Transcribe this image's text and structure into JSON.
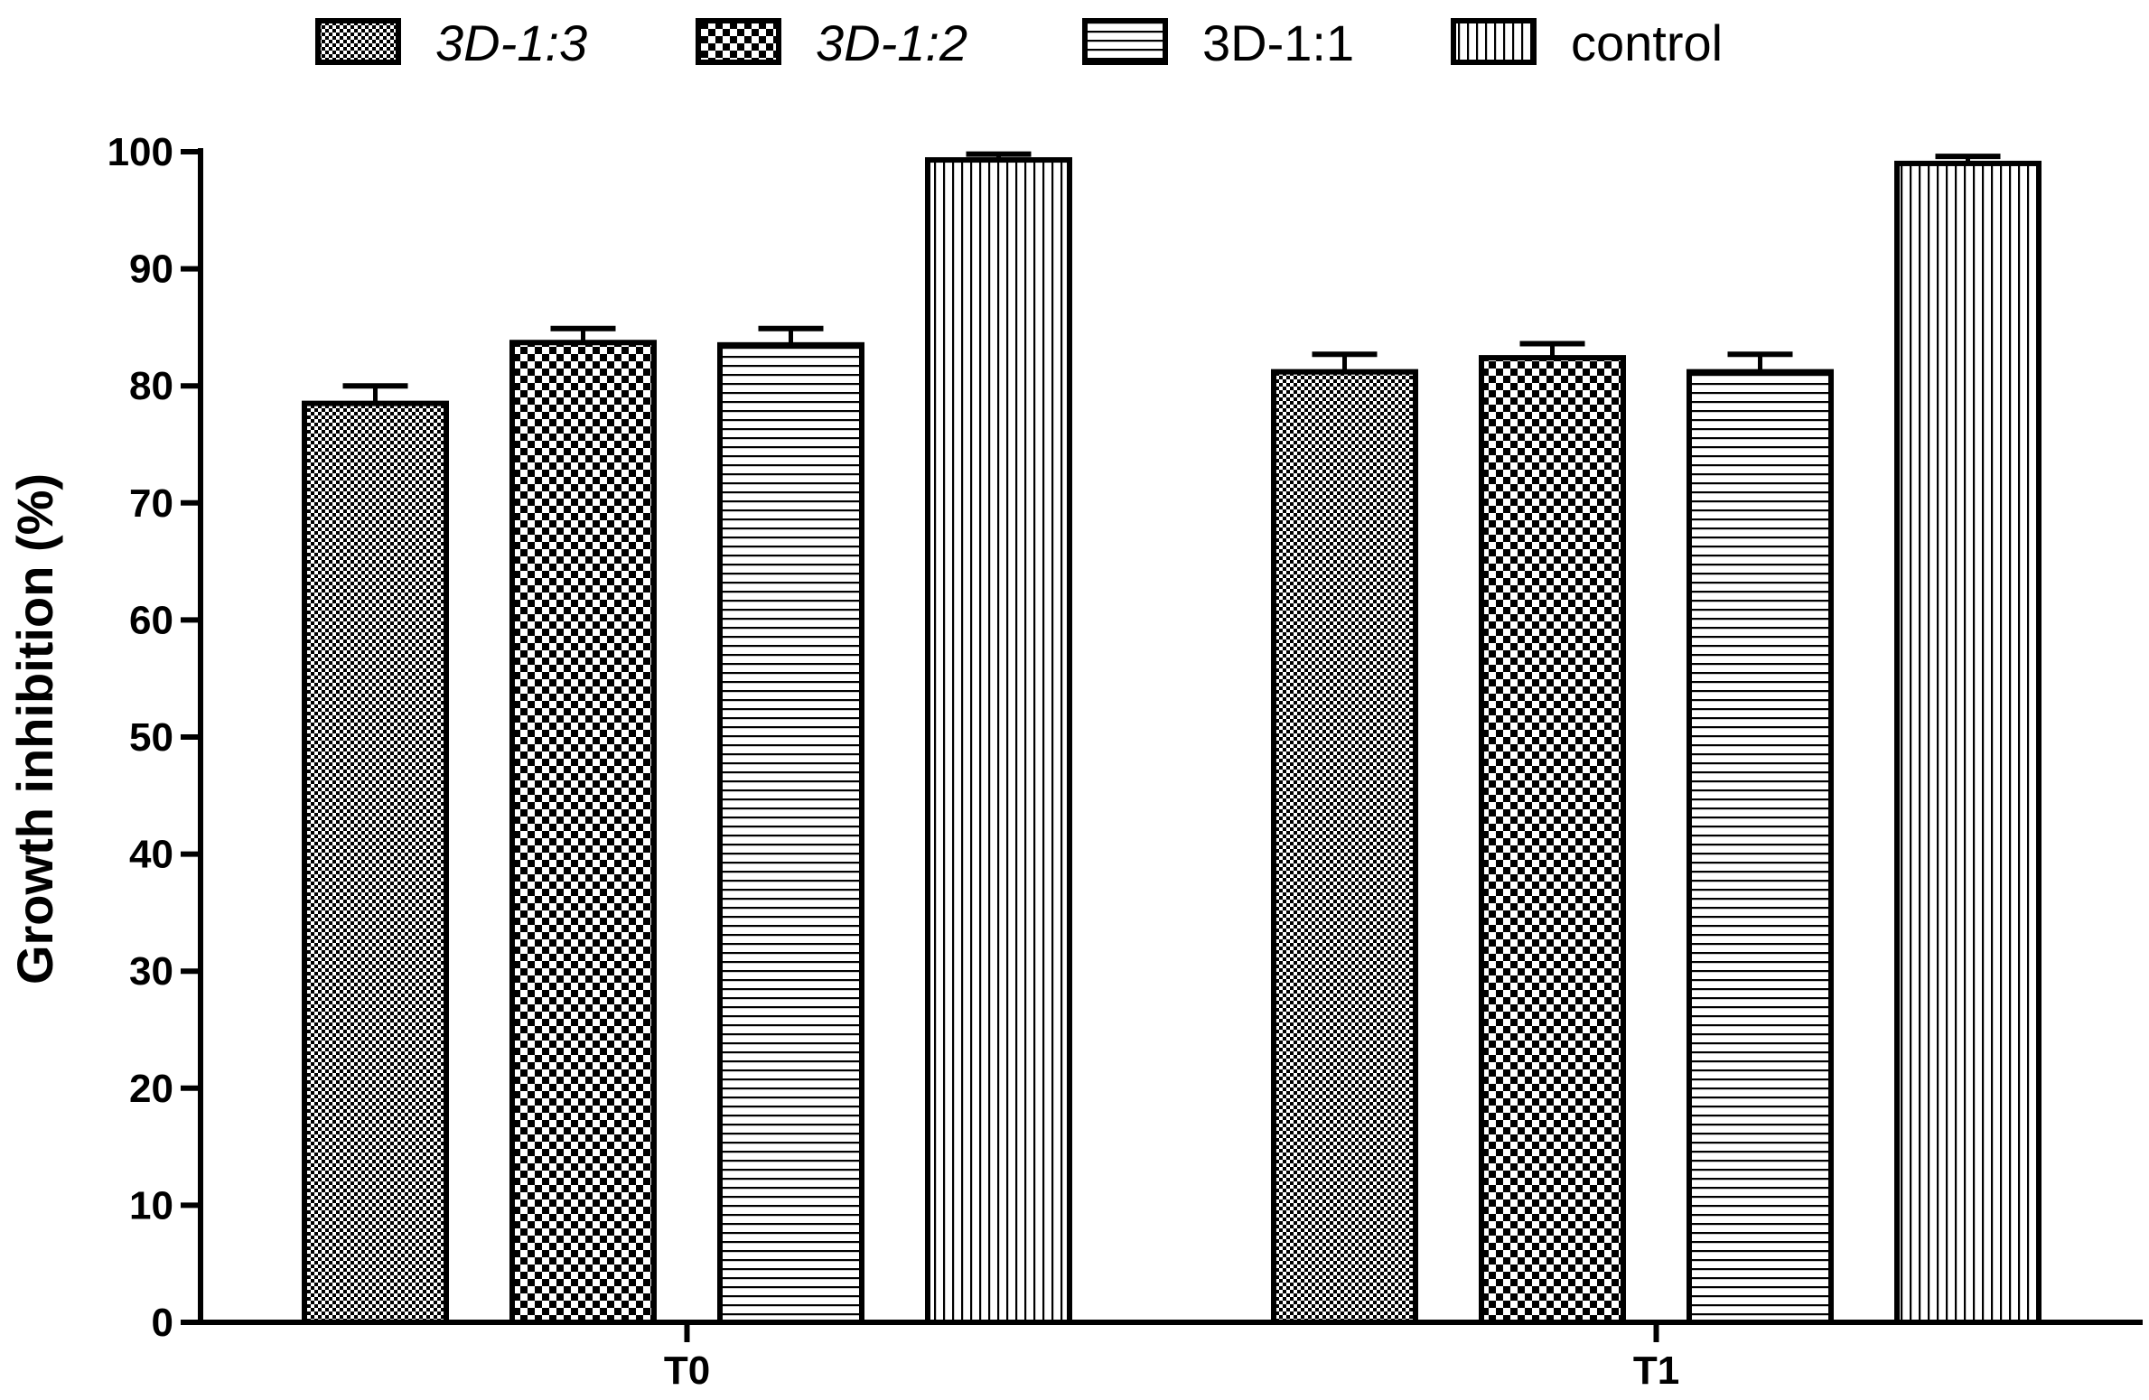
{
  "chart_data": {
    "type": "bar",
    "title": "",
    "xlabel": "",
    "ylabel": "Growth inhibition (%)",
    "ylim": [
      0,
      100
    ],
    "yticks": [
      0,
      10,
      20,
      30,
      40,
      50,
      60,
      70,
      80,
      90,
      100
    ],
    "categories": [
      "T0",
      "T1"
    ],
    "legend_position": "top",
    "series": [
      {
        "name": "3D-1:3",
        "italic": true,
        "pattern": "fine-checker",
        "values": [
          78.5,
          81.2
        ],
        "errors": [
          1.5,
          1.5
        ]
      },
      {
        "name": "3D-1:2",
        "italic": true,
        "pattern": "coarse-checker",
        "values": [
          83.7,
          82.4
        ],
        "errors": [
          1.2,
          1.2
        ]
      },
      {
        "name": "3D-1:1",
        "italic": false,
        "pattern": "horizontal-lines",
        "values": [
          83.5,
          81.2
        ],
        "errors": [
          1.4,
          1.5
        ]
      },
      {
        "name": "control",
        "italic": false,
        "pattern": "vertical-lines",
        "values": [
          99.3,
          99.0
        ],
        "errors": [
          0.5,
          0.6
        ]
      }
    ],
    "colors": {
      "stroke": "#000000",
      "fill": "#ffffff"
    }
  }
}
